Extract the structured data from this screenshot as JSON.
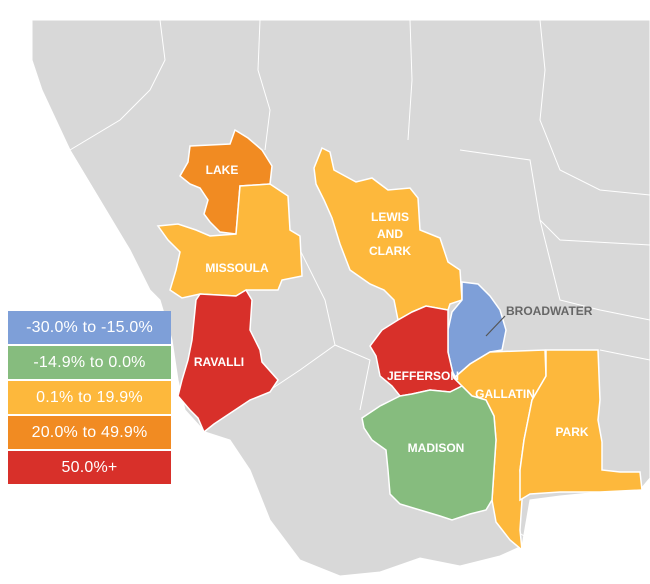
{
  "colors": {
    "decline_large": "#7e9fd8",
    "decline_small": "#86bc7e",
    "gain_small": "#fdb83c",
    "gain_medium": "#f18b22",
    "gain_large": "#d8302a",
    "background_land": "#d8d8d8",
    "boundary": "#ffffff"
  },
  "legend": [
    {
      "label": "-30.0% to -15.0%",
      "color": "#7e9fd8"
    },
    {
      "label": "-14.9% to 0.0%",
      "color": "#86bc7e"
    },
    {
      "label": "0.1% to 19.9%",
      "color": "#fdb83c"
    },
    {
      "label": "20.0% to 49.9%",
      "color": "#f18b22"
    },
    {
      "label": "50.0%+",
      "color": "#d8302a"
    }
  ],
  "counties": {
    "lake": {
      "name": "LAKE",
      "category": "20.0% to 49.9%"
    },
    "missoula": {
      "name": "MISSOULA",
      "category": "0.1% to 19.9%"
    },
    "lewis_and_clark": {
      "line1": "LEWIS",
      "line2": "AND",
      "line3": "CLARK",
      "category": "0.1% to 19.9%"
    },
    "broadwater": {
      "name": "BROADWATER",
      "category": "-30.0% to -15.0%"
    },
    "ravalli": {
      "name": "RAVALLI",
      "category": "50.0%+"
    },
    "jefferson": {
      "name": "JEFFERSON",
      "category": "50.0%+"
    },
    "gallatin": {
      "name": "GALLATIN",
      "category": "0.1% to 19.9%"
    },
    "park": {
      "name": "PARK",
      "category": "0.1% to 19.9%"
    },
    "madison": {
      "name": "MADISON",
      "category": "-14.9% to 0.0%"
    }
  }
}
